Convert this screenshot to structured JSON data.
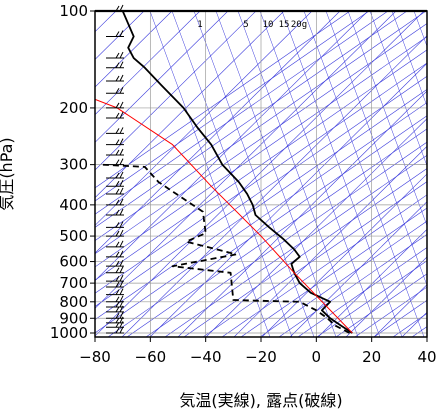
{
  "chart_data": {
    "type": "line",
    "title": "",
    "xlabel": "気温(実線), 露点(破線)",
    "ylabel": "気圧(hPa)",
    "xlim": [
      -80,
      40
    ],
    "ylim": [
      1000,
      100
    ],
    "y_scale": "log",
    "grid": true,
    "x_ticks": [
      -80,
      -60,
      -40,
      -20,
      0,
      20,
      40
    ],
    "x_tick_labels": [
      "−80",
      "−60",
      "−40",
      "−20",
      "0",
      "20",
      "40"
    ],
    "y_ticks": [
      100,
      200,
      300,
      400,
      500,
      600,
      700,
      800,
      900,
      1000
    ],
    "y_tick_labels": [
      "100",
      "200",
      "300",
      "400",
      "500",
      "600",
      "700",
      "800",
      "900",
      "1000"
    ],
    "mixing_ratio_labels": [
      "1",
      "5",
      "10",
      "15",
      "20g"
    ],
    "colors": {
      "temperature": "#000000",
      "dewpoint": "#000000",
      "parcel": "#ff0000",
      "background_lines": "#3b3bdc",
      "grid": "#9a9a9a",
      "wind_barbs": "#000000"
    },
    "series": [
      {
        "style": "solid",
        "color": "#000000",
        "points": [
          [
            13,
            1000
          ],
          [
            9,
            950
          ],
          [
            5,
            900
          ],
          [
            2,
            850
          ],
          [
            5,
            800
          ],
          [
            -2,
            750
          ],
          [
            -6,
            700
          ],
          [
            -8,
            650
          ],
          [
            -9,
            610
          ],
          [
            -6,
            580
          ],
          [
            -8,
            550
          ],
          [
            -12,
            510
          ],
          [
            -17,
            470
          ],
          [
            -22,
            430
          ],
          [
            -23,
            400
          ],
          [
            -25,
            370
          ],
          [
            -28,
            340
          ],
          [
            -34,
            300
          ],
          [
            -38,
            260
          ],
          [
            -43,
            230
          ],
          [
            -48,
            200
          ],
          [
            -56,
            170
          ],
          [
            -62,
            150
          ],
          [
            -66,
            140
          ],
          [
            -68,
            130
          ],
          [
            -66,
            120
          ],
          [
            -70,
            100
          ]
        ]
      },
      {
        "style": "dashed",
        "color": "#000000",
        "points": [
          [
            12,
            1000
          ],
          [
            7,
            950
          ],
          [
            4,
            900
          ],
          [
            0,
            850
          ],
          [
            -6,
            800
          ],
          [
            -30,
            790
          ],
          [
            -31,
            650
          ],
          [
            -52,
            620
          ],
          [
            -29,
            570
          ],
          [
            -47,
            520
          ],
          [
            -40,
            490
          ],
          [
            -41,
            420
          ],
          [
            -57,
            340
          ],
          [
            -62,
            305
          ],
          [
            -78,
            300
          ]
        ]
      },
      {
        "style": "solid",
        "color": "#ff0000",
        "points": [
          [
            13,
            1000
          ],
          [
            -8,
            650
          ],
          [
            -20,
            500
          ],
          [
            -38,
            350
          ],
          [
            -52,
            260
          ],
          [
            -72,
            200
          ],
          [
            -80,
            188
          ]
        ]
      }
    ]
  }
}
